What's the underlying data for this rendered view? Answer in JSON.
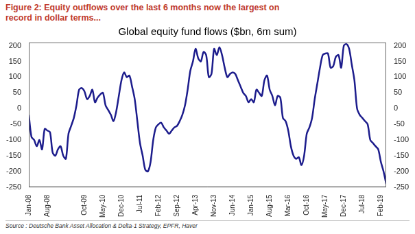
{
  "chart_data": {
    "type": "line",
    "figure_title": "Figure 2: Equity outflows over the last 6 months now the largest on record in dollar terms...",
    "title": "Global equity fund flows ($bn, 6m sum)",
    "source": "Source : Deutsche Bank Asset Allocation & Delta-1 Strategy, EPFR, Haver",
    "categories": [
      "Jan-08",
      null,
      null,
      null,
      null,
      null,
      null,
      "Aug-08",
      null,
      null,
      null,
      null,
      null,
      null,
      null,
      null,
      null,
      null,
      null,
      null,
      null,
      "Oct-09",
      null,
      null,
      null,
      null,
      null,
      null,
      "May-10",
      null,
      null,
      null,
      null,
      null,
      null,
      "Dec-10",
      null,
      null,
      null,
      null,
      null,
      null,
      "Jul-11",
      null,
      null,
      null,
      null,
      null,
      null,
      "Feb-12",
      null,
      null,
      null,
      null,
      null,
      null,
      "Sep-12",
      null,
      null,
      null,
      null,
      null,
      null,
      "Apr-13",
      null,
      null,
      null,
      null,
      null,
      null,
      "Nov-13",
      null,
      null,
      null,
      null,
      null,
      null,
      "Jun-14",
      null,
      null,
      null,
      null,
      null,
      null,
      "Jan-15",
      null,
      null,
      null,
      null,
      null,
      null,
      "Aug-15",
      null,
      null,
      null,
      null,
      null,
      null,
      "Mar-16",
      null,
      null,
      null,
      null,
      null,
      null,
      "Oct-16",
      null,
      null,
      null,
      null,
      null,
      null,
      "May-17",
      null,
      null,
      null,
      null,
      null,
      null,
      "Dec-17",
      null,
      null,
      null,
      null,
      null,
      null,
      "Jul-18",
      null,
      null,
      null,
      null,
      null,
      null,
      "Feb-19",
      null,
      null
    ],
    "values": [
      -20,
      -90,
      -100,
      -120,
      -100,
      -130,
      -65,
      -70,
      -75,
      -140,
      -150,
      -130,
      -120,
      -150,
      -160,
      -80,
      -55,
      -30,
      10,
      60,
      65,
      55,
      30,
      40,
      60,
      20,
      35,
      45,
      50,
      10,
      -5,
      -20,
      -40,
      -10,
      40,
      90,
      115,
      100,
      105,
      70,
      30,
      -40,
      -110,
      -150,
      -195,
      -200,
      -170,
      -100,
      -60,
      -50,
      -45,
      -60,
      -70,
      -80,
      -70,
      -60,
      -55,
      -40,
      -20,
      10,
      60,
      120,
      150,
      190,
      160,
      150,
      180,
      170,
      100,
      110,
      190,
      170,
      195,
      170,
      130,
      100,
      110,
      115,
      110,
      90,
      70,
      50,
      40,
      20,
      30,
      20,
      60,
      50,
      40,
      90,
      105,
      60,
      40,
      10,
      40,
      35,
      -30,
      -40,
      -70,
      -120,
      -150,
      -160,
      -155,
      -180,
      -150,
      -80,
      -60,
      -30,
      30,
      80,
      130,
      170,
      175,
      175,
      130,
      135,
      165,
      170,
      130,
      200,
      205,
      190,
      140,
      90,
      0,
      -20,
      -30,
      -40,
      -50,
      -100,
      -110,
      -120,
      -130,
      -170,
      -200,
      -240
    ],
    "color": "#1c1c8c",
    "ylim": [
      -250,
      210
    ],
    "yticks": [
      -250,
      -200,
      -150,
      -100,
      -50,
      0,
      50,
      100,
      150,
      200
    ],
    "y2lim": [
      -250,
      210
    ],
    "y2ticks": [
      -250,
      -200,
      -150,
      -100,
      -50,
      0,
      50,
      100,
      150,
      200
    ],
    "grid": false
  }
}
